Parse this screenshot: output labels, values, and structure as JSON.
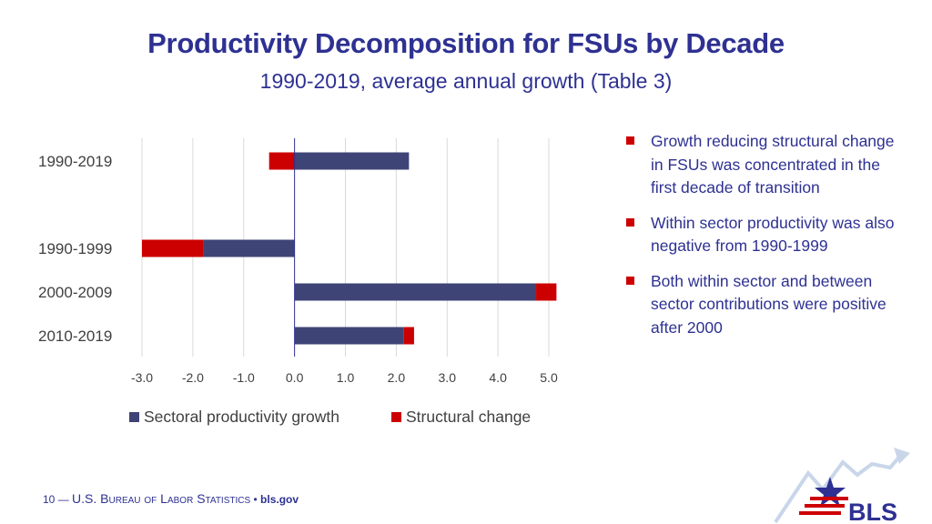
{
  "title": "Productivity Decomposition for FSUs by Decade",
  "subtitle": "1990-2019, average annual growth (Table 3)",
  "colors": {
    "sectoral": "#3f4477",
    "structural": "#cc0000",
    "title": "#2e3192"
  },
  "chart_data": {
    "type": "bar",
    "orientation": "horizontal",
    "stacked": true,
    "categories": [
      "1990-2019",
      "1990-1999",
      "2000-2009",
      "2010-2019"
    ],
    "series": [
      {
        "name": "Sectoral productivity growth",
        "values": [
          2.25,
          -1.8,
          4.75,
          2.15
        ]
      },
      {
        "name": "Structural change",
        "values": [
          -0.5,
          -1.2,
          0.4,
          0.2
        ]
      }
    ],
    "xlim": [
      -3.0,
      5.0
    ],
    "xticks": [
      "-3.0",
      "-2.0",
      "-1.0",
      "0.0",
      "1.0",
      "2.0",
      "3.0",
      "4.0",
      "5.0"
    ],
    "legend_position": "bottom",
    "grid": true
  },
  "bullets": [
    "Growth reducing structural change in FSUs was concentrated in the first decade of transition",
    "Within sector productivity was also negative from 1990-1999",
    "Both within sector and between sector contributions were positive after 2000"
  ],
  "footer": {
    "page_number": "10",
    "agency": "U.S. Bureau of Labor Statistics",
    "separator": "•",
    "site": "bls.gov"
  },
  "logo_text": "BLS"
}
